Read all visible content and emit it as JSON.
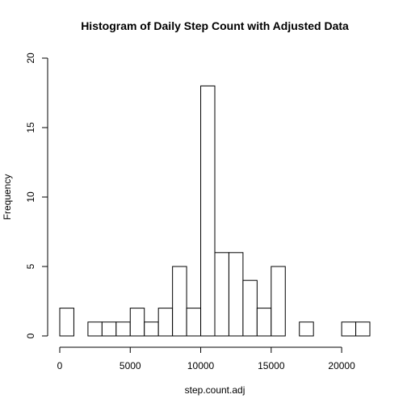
{
  "chart_data": {
    "type": "bar",
    "title": "Histogram of Daily Step Count with Adjusted Data",
    "xlabel": "step.count.adj",
    "ylabel": "Frequency",
    "bin_width": 1000,
    "bin_starts": [
      0,
      1000,
      2000,
      3000,
      4000,
      5000,
      6000,
      7000,
      8000,
      9000,
      10000,
      11000,
      12000,
      13000,
      14000,
      15000,
      16000,
      17000,
      18000,
      19000,
      20000,
      21000
    ],
    "values": [
      2,
      0,
      1,
      1,
      1,
      2,
      1,
      2,
      5,
      2,
      18,
      6,
      6,
      4,
      2,
      5,
      0,
      1,
      0,
      0,
      1,
      1
    ],
    "xlim": [
      0,
      22000
    ],
    "ylim": [
      0,
      20
    ],
    "x_ticks": [
      0,
      5000,
      10000,
      15000,
      20000
    ],
    "y_ticks": [
      0,
      5,
      10,
      15,
      20
    ],
    "grid": false
  }
}
